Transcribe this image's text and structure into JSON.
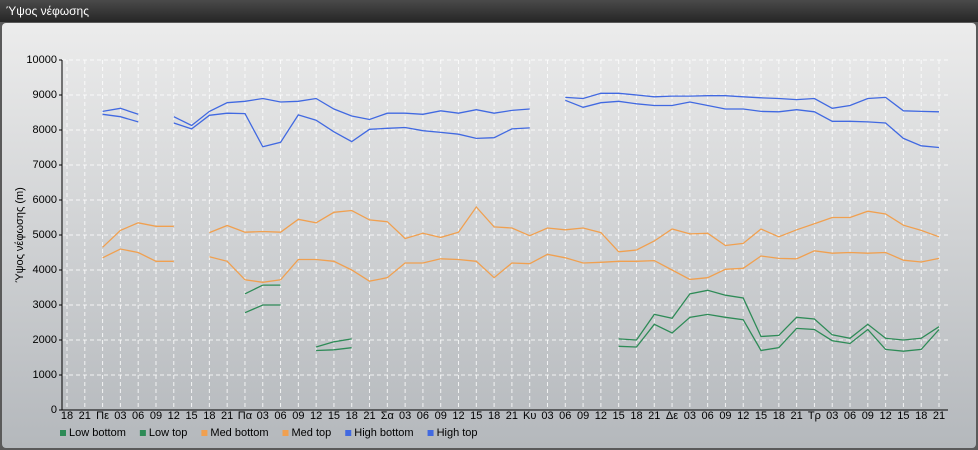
{
  "window_title": "Ύψος νέφωσης",
  "chart_data": {
    "type": "line",
    "ylabel": "Ύψος νέφωσης (m)",
    "categories": [
      "18",
      "21",
      "Πε",
      "03",
      "06",
      "09",
      "12",
      "15",
      "18",
      "21",
      "Πα",
      "03",
      "06",
      "09",
      "12",
      "15",
      "18",
      "21",
      "Σα",
      "03",
      "06",
      "09",
      "12",
      "15",
      "18",
      "21",
      "Κυ",
      "03",
      "06",
      "09",
      "12",
      "15",
      "18",
      "21",
      "Δε",
      "03",
      "06",
      "09",
      "12",
      "15",
      "18",
      "21",
      "Τρ",
      "03",
      "06",
      "09",
      "12",
      "15",
      "18",
      "21"
    ],
    "series": [
      {
        "name": "Low bottom",
        "color": "#2e8b57",
        "values": [
          null,
          null,
          null,
          null,
          null,
          null,
          null,
          null,
          null,
          null,
          2780,
          3000,
          3000,
          null,
          1700,
          1720,
          1780,
          null,
          null,
          null,
          null,
          null,
          null,
          null,
          null,
          null,
          null,
          null,
          null,
          null,
          null,
          1820,
          1800,
          2450,
          2200,
          2650,
          2730,
          2650,
          2580,
          1700,
          1780,
          2330,
          2300,
          1980,
          1900,
          2300,
          1730,
          1680,
          1730,
          2300
        ]
      },
      {
        "name": "Low top",
        "color": "#2e8b57",
        "values": [
          null,
          null,
          null,
          null,
          null,
          null,
          null,
          null,
          null,
          null,
          3320,
          3570,
          3570,
          null,
          1800,
          1950,
          2030,
          null,
          null,
          null,
          null,
          null,
          null,
          null,
          null,
          null,
          null,
          null,
          null,
          null,
          null,
          2030,
          2000,
          2730,
          2620,
          3320,
          3420,
          3280,
          3200,
          2100,
          2130,
          2650,
          2600,
          2150,
          2050,
          2450,
          2050,
          2000,
          2050,
          2380
        ]
      },
      {
        "name": "Med bottom",
        "color": "#f0a050",
        "values": [
          null,
          null,
          4350,
          4600,
          4500,
          4250,
          4250,
          null,
          4380,
          4250,
          3720,
          3650,
          3720,
          4300,
          4300,
          4250,
          4000,
          3680,
          3780,
          4200,
          4200,
          4320,
          4300,
          4250,
          3780,
          4200,
          4180,
          4450,
          4350,
          4200,
          4220,
          4250,
          4250,
          4270,
          4000,
          3730,
          3780,
          4020,
          4050,
          4400,
          4330,
          4320,
          4550,
          4480,
          4500,
          4480,
          4500,
          4280,
          4230,
          4330
        ]
      },
      {
        "name": "Med top",
        "color": "#f0a050",
        "values": [
          null,
          null,
          4650,
          5130,
          5350,
          5250,
          5250,
          null,
          5070,
          5270,
          5080,
          5100,
          5080,
          5450,
          5350,
          5650,
          5700,
          5430,
          5380,
          4900,
          5050,
          4930,
          5080,
          5800,
          5230,
          5200,
          4980,
          5200,
          5150,
          5200,
          5070,
          4520,
          4570,
          4830,
          5170,
          5030,
          5050,
          4700,
          4760,
          5170,
          4950,
          5150,
          5320,
          5500,
          5500,
          5680,
          5600,
          5280,
          5130,
          4950
        ]
      },
      {
        "name": "High bottom",
        "color": "#4169e1",
        "values": [
          null,
          null,
          8450,
          8380,
          8230,
          null,
          8200,
          8030,
          8420,
          8480,
          8470,
          7520,
          7650,
          8430,
          8280,
          7950,
          7670,
          8020,
          8050,
          8070,
          7980,
          7930,
          7880,
          7760,
          7780,
          8030,
          8060,
          null,
          8850,
          8650,
          8780,
          8820,
          8750,
          8700,
          8700,
          8800,
          8700,
          8600,
          8600,
          8530,
          8520,
          8580,
          8520,
          8250,
          8250,
          8230,
          8200,
          7760,
          7550,
          7500
        ]
      },
      {
        "name": "High top",
        "color": "#4169e1",
        "values": [
          null,
          null,
          8530,
          8620,
          8450,
          null,
          8380,
          8130,
          8530,
          8780,
          8820,
          8900,
          8800,
          8820,
          8900,
          8600,
          8400,
          8300,
          8480,
          8480,
          8450,
          8550,
          8480,
          8580,
          8480,
          8560,
          8600,
          null,
          8930,
          8900,
          9050,
          9050,
          9000,
          8950,
          8970,
          8970,
          8980,
          8980,
          8950,
          8920,
          8900,
          8870,
          8900,
          8620,
          8700,
          8900,
          8930,
          8550,
          8530,
          8520
        ]
      }
    ],
    "ylim": [
      0,
      10000
    ],
    "yticks": [
      0,
      1000,
      2000,
      3000,
      4000,
      5000,
      6000,
      7000,
      8000,
      9000,
      10000
    ],
    "grid": true,
    "legend": "bottom-left"
  }
}
